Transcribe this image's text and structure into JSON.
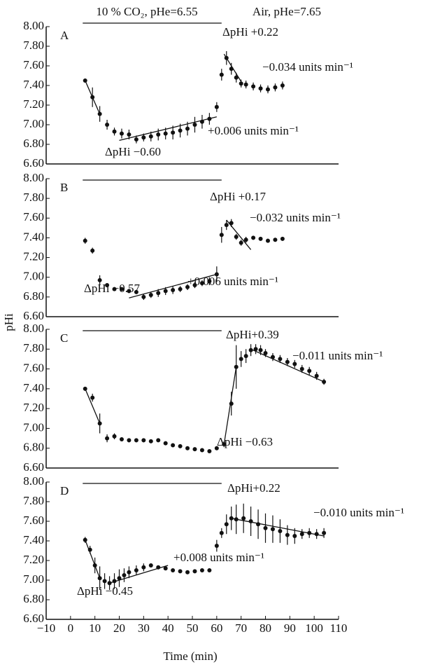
{
  "chart_data": [
    {
      "type": "line",
      "label": "A",
      "header_labels": [
        "10 % CO₂, pHe=6.55",
        "Air, pHe=7.65"
      ],
      "co2_period": [
        5,
        62
      ],
      "xlim": [
        -10,
        110
      ],
      "ylim": [
        6.6,
        8.0
      ],
      "yticks": [
        {
          "value": 6.6,
          "label": "6.60"
        },
        {
          "value": 6.8,
          "label": "6.80"
        },
        {
          "value": 7.0,
          "label": "7.00"
        },
        {
          "value": 7.2,
          "label": "7.20"
        },
        {
          "value": 7.4,
          "label": "7.40"
        },
        {
          "value": 7.6,
          "label": "7.60"
        },
        {
          "value": 7.8,
          "label": "7.80"
        },
        {
          "value": 8.0,
          "label": "8.00"
        }
      ],
      "series": [
        {
          "color": "#111111",
          "x": [
            6,
            9,
            12,
            15,
            18,
            21,
            24,
            27,
            30,
            33,
            36,
            39,
            42,
            45,
            48,
            51,
            54,
            57,
            60,
            62,
            64,
            66,
            68,
            70,
            72,
            75,
            78,
            81,
            84,
            87
          ],
          "values": [
            7.45,
            7.28,
            7.11,
            7.0,
            6.93,
            6.91,
            6.9,
            6.85,
            6.87,
            6.88,
            6.9,
            6.91,
            6.92,
            6.94,
            6.96,
            7.0,
            7.03,
            7.06,
            7.18,
            7.51,
            7.68,
            7.57,
            7.48,
            7.42,
            7.41,
            7.39,
            7.37,
            7.36,
            7.38,
            7.4
          ],
          "errors": [
            0.02,
            0.1,
            0.08,
            0.05,
            0.04,
            0.05,
            0.05,
            0.04,
            0.04,
            0.05,
            0.06,
            0.06,
            0.07,
            0.07,
            0.07,
            0.08,
            0.07,
            0.06,
            0.05,
            0.06,
            0.07,
            0.06,
            0.05,
            0.04,
            0.04,
            0.04,
            0.04,
            0.04,
            0.04,
            0.04
          ]
        }
      ],
      "trend_lines": [
        {
          "x": [
            6,
            12
          ],
          "y": [
            7.45,
            7.11
          ]
        },
        {
          "x": [
            20,
            60
          ],
          "y": [
            6.84,
            7.08
          ]
        },
        {
          "x": [
            63,
            70
          ],
          "y": [
            7.72,
            7.44
          ]
        }
      ],
      "annotations": [
        "ΔpHi +0.22",
        "−0.034 units min⁻¹",
        "+0.006 units min⁻¹",
        "ΔpHi −0.60"
      ]
    },
    {
      "type": "line",
      "label": "B",
      "co2_period": [
        5,
        62
      ],
      "xlim": [
        -10,
        110
      ],
      "ylim": [
        6.6,
        8.0
      ],
      "yticks": [
        {
          "value": 6.6,
          "label": "6.60"
        },
        {
          "value": 6.8,
          "label": "6.80"
        },
        {
          "value": 7.0,
          "label": "7.00"
        },
        {
          "value": 7.2,
          "label": "7.20"
        },
        {
          "value": 7.4,
          "label": "7.40"
        },
        {
          "value": 7.6,
          "label": "7.60"
        },
        {
          "value": 7.8,
          "label": "7.80"
        },
        {
          "value": 8.0,
          "label": "8.00"
        }
      ],
      "series": [
        {
          "color": "#111111",
          "x": [
            6,
            9,
            12,
            15,
            18,
            21,
            24,
            27,
            30,
            33,
            36,
            39,
            42,
            45,
            48,
            51,
            54,
            57,
            60,
            62,
            64,
            66,
            68,
            70,
            72,
            75,
            78,
            81,
            84,
            87
          ],
          "values": [
            7.37,
            7.27,
            6.97,
            6.92,
            6.88,
            6.88,
            6.86,
            6.85,
            6.8,
            6.82,
            6.84,
            6.86,
            6.87,
            6.88,
            6.9,
            6.92,
            6.94,
            6.96,
            7.03,
            7.43,
            7.53,
            7.55,
            7.41,
            7.35,
            7.38,
            7.4,
            7.39,
            7.37,
            7.38,
            7.39
          ],
          "errors": [
            0.03,
            0.03,
            0.05,
            0.02,
            0.02,
            0.02,
            0.02,
            0.02,
            0.03,
            0.03,
            0.04,
            0.04,
            0.04,
            0.03,
            0.03,
            0.03,
            0.03,
            0.04,
            0.08,
            0.08,
            0.05,
            0.04,
            0.03,
            0.03,
            0.03,
            0.02,
            0.02,
            0.02,
            0.02,
            0.02
          ]
        }
      ],
      "trend_lines": [
        {
          "x": [
            24,
            60
          ],
          "y": [
            6.79,
            7.03
          ]
        },
        {
          "x": [
            64,
            74
          ],
          "y": [
            7.58,
            7.28
          ]
        }
      ],
      "annotations": [
        "ΔpHi +0.17",
        "−0.032 units min⁻¹",
        "+0.006 units min⁻¹",
        "ΔpHi −0.57"
      ]
    },
    {
      "type": "line",
      "label": "C",
      "ylabel": "pHi",
      "co2_period": [
        5,
        62
      ],
      "xlim": [
        -10,
        110
      ],
      "ylim": [
        6.6,
        8.0
      ],
      "yticks": [
        {
          "value": 6.6,
          "label": "6.60"
        },
        {
          "value": 6.8,
          "label": "6.80"
        },
        {
          "value": 7.0,
          "label": "7.00"
        },
        {
          "value": 7.2,
          "label": "7.20"
        },
        {
          "value": 7.4,
          "label": "7.40"
        },
        {
          "value": 7.6,
          "label": "7.60"
        },
        {
          "value": 7.8,
          "label": "7.80"
        },
        {
          "value": 8.0,
          "label": "8.00"
        }
      ],
      "series": [
        {
          "color": "#111111",
          "x": [
            6,
            9,
            12,
            15,
            18,
            21,
            24,
            27,
            30,
            33,
            36,
            39,
            42,
            45,
            48,
            51,
            54,
            57,
            60,
            63,
            66,
            68,
            70,
            72,
            74,
            76,
            78,
            80,
            83,
            86,
            89,
            92,
            95,
            98,
            101,
            104
          ],
          "values": [
            7.4,
            7.31,
            7.05,
            6.9,
            6.92,
            6.89,
            6.88,
            6.88,
            6.88,
            6.87,
            6.88,
            6.85,
            6.83,
            6.82,
            6.8,
            6.79,
            6.78,
            6.77,
            6.8,
            6.84,
            7.25,
            7.62,
            7.7,
            7.73,
            7.79,
            7.8,
            7.79,
            7.76,
            7.72,
            7.7,
            7.67,
            7.65,
            7.6,
            7.58,
            7.53,
            7.47
          ],
          "errors": [
            0.02,
            0.04,
            0.1,
            0.04,
            0.03,
            0.02,
            0.02,
            0.02,
            0.02,
            0.01,
            0.01,
            0.01,
            0.01,
            0.01,
            0.01,
            0.01,
            0.01,
            0.01,
            0.02,
            0.03,
            0.12,
            0.22,
            0.08,
            0.07,
            0.06,
            0.05,
            0.05,
            0.04,
            0.04,
            0.04,
            0.04,
            0.04,
            0.04,
            0.04,
            0.04,
            0.03
          ]
        }
      ],
      "trend_lines": [
        {
          "x": [
            6,
            12
          ],
          "y": [
            7.4,
            7.05
          ]
        },
        {
          "x": [
            63,
            68
          ],
          "y": [
            6.84,
            7.62
          ]
        },
        {
          "x": [
            74,
            104
          ],
          "y": [
            7.8,
            7.47
          ]
        }
      ],
      "annotations": [
        "ΔpHi+0.39",
        "−0.011 units min⁻¹",
        "ΔpHi −0.63"
      ]
    },
    {
      "type": "line",
      "label": "D",
      "xlabel": "Time (min)",
      "co2_period": [
        5,
        62
      ],
      "xlim": [
        -10,
        110
      ],
      "ylim": [
        6.6,
        8.0
      ],
      "xticks": [
        {
          "value": -10,
          "label": "−10"
        },
        0,
        10,
        20,
        30,
        40,
        50,
        60,
        70,
        80,
        90,
        100,
        110
      ],
      "yticks": [
        {
          "value": 6.6,
          "label": "6.60"
        },
        {
          "value": 6.8,
          "label": "6.80"
        },
        {
          "value": 7.0,
          "label": "7.00"
        },
        {
          "value": 7.2,
          "label": "7.20"
        },
        {
          "value": 7.4,
          "label": "7.40"
        },
        {
          "value": 7.6,
          "label": "7.60"
        },
        {
          "value": 7.8,
          "label": "7.80"
        },
        {
          "value": 8.0,
          "label": "8.00"
        }
      ],
      "series": [
        {
          "color": "#111111",
          "x": [
            6,
            8,
            10,
            12,
            14,
            16,
            18,
            20,
            22,
            24,
            27,
            30,
            33,
            36,
            39,
            42,
            45,
            48,
            51,
            54,
            57,
            60,
            62,
            64,
            66,
            68,
            71,
            74,
            77,
            80,
            83,
            86,
            89,
            92,
            95,
            98,
            101,
            104
          ],
          "values": [
            7.41,
            7.31,
            7.15,
            7.02,
            6.99,
            6.97,
            6.99,
            7.02,
            7.05,
            7.08,
            7.1,
            7.13,
            7.15,
            7.13,
            7.12,
            7.1,
            7.09,
            7.08,
            7.09,
            7.1,
            7.1,
            7.35,
            7.48,
            7.57,
            7.63,
            7.62,
            7.63,
            7.6,
            7.57,
            7.53,
            7.52,
            7.5,
            7.46,
            7.45,
            7.47,
            7.48,
            7.47,
            7.48
          ],
          "errors": [
            0.03,
            0.04,
            0.08,
            0.12,
            0.08,
            0.07,
            0.08,
            0.09,
            0.07,
            0.06,
            0.05,
            0.04,
            0.02,
            0.02,
            0.02,
            0.01,
            0.01,
            0.01,
            0.01,
            0.01,
            0.02,
            0.06,
            0.05,
            0.1,
            0.12,
            0.15,
            0.15,
            0.15,
            0.15,
            0.15,
            0.14,
            0.12,
            0.1,
            0.08,
            0.05,
            0.05,
            0.05,
            0.05
          ]
        }
      ],
      "trend_lines": [
        {
          "x": [
            6,
            12
          ],
          "y": [
            7.41,
            7.02
          ]
        },
        {
          "x": [
            16,
            40
          ],
          "y": [
            6.97,
            7.15
          ]
        },
        {
          "x": [
            66,
            104
          ],
          "y": [
            7.63,
            7.45
          ]
        }
      ],
      "annotations": [
        "ΔpHi+0.22",
        "−0.010 units min⁻¹",
        "+0.008 units min⁻¹",
        "ΔpHi −0.45"
      ]
    }
  ]
}
